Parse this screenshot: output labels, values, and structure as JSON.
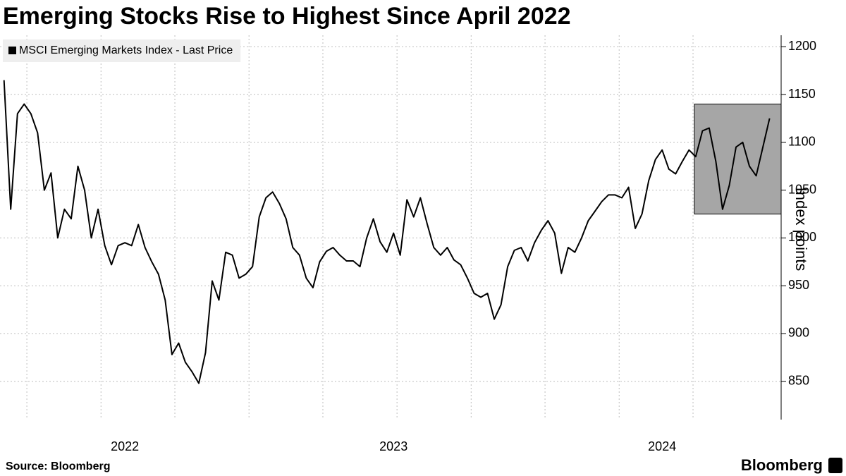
{
  "chart_data": {
    "type": "line",
    "title": "Emerging Stocks Rise to Highest Since April 2022",
    "y_label": "Index points",
    "source": "Source: Bloomberg",
    "brand": "Bloomberg",
    "x": [
      2021.55,
      2021.575,
      2021.6,
      2021.625,
      2021.65,
      2021.675,
      2021.7,
      2021.725,
      2021.75,
      2021.775,
      2021.8,
      2021.825,
      2021.85,
      2021.875,
      2021.9,
      2021.925,
      2021.95,
      2021.975,
      2022,
      2022.025,
      2022.05,
      2022.075,
      2022.1,
      2022.125,
      2022.15,
      2022.175,
      2022.2,
      2022.225,
      2022.25,
      2022.275,
      2022.3,
      2022.325,
      2022.35,
      2022.375,
      2022.4,
      2022.425,
      2022.45,
      2022.475,
      2022.5,
      2022.525,
      2022.55,
      2022.575,
      2022.6,
      2022.625,
      2022.65,
      2022.675,
      2022.7,
      2022.725,
      2022.75,
      2022.775,
      2022.8,
      2022.825,
      2022.85,
      2022.875,
      2022.9,
      2022.925,
      2022.95,
      2022.975,
      2023,
      2023.025,
      2023.05,
      2023.075,
      2023.1,
      2023.125,
      2023.15,
      2023.175,
      2023.2,
      2023.225,
      2023.25,
      2023.275,
      2023.3,
      2023.325,
      2023.35,
      2023.375,
      2023.4,
      2023.425,
      2023.45,
      2023.475,
      2023.5,
      2023.525,
      2023.55,
      2023.575,
      2023.6,
      2023.625,
      2023.65,
      2023.675,
      2023.7,
      2023.725,
      2023.75,
      2023.775,
      2023.8,
      2023.825,
      2023.85,
      2023.875,
      2023.9,
      2023.925,
      2023.95,
      2023.975,
      2024,
      2024.025,
      2024.05,
      2024.075,
      2024.1,
      2024.125,
      2024.15,
      2024.175,
      2024.2,
      2024.225,
      2024.25,
      2024.275,
      2024.3,
      2024.325,
      2024.35,
      2024.375,
      2024.4
    ],
    "series": [
      {
        "name": "MSCI Emerging Markets Index - Last Price",
        "color": "#000000",
        "values": [
          1165,
          1030,
          1130,
          1140,
          1130,
          1110,
          1050,
          1068,
          1000,
          1030,
          1020,
          1075,
          1050,
          1000,
          1030,
          992,
          972,
          992,
          995,
          992,
          1014,
          990,
          975,
          962,
          935,
          878,
          890,
          870,
          860,
          848,
          880,
          955,
          935,
          985,
          982,
          958,
          962,
          970,
          1022,
          1042,
          1048,
          1036,
          1020,
          990,
          982,
          958,
          948,
          975,
          986,
          990,
          982,
          976,
          976,
          970,
          1000,
          1020,
          996,
          985,
          1005,
          982,
          1040,
          1022,
          1042,
          1015,
          990,
          982,
          990,
          977,
          972,
          958,
          942,
          938,
          942,
          915,
          930,
          970,
          987,
          990,
          976,
          995,
          1008,
          1018,
          1005,
          963,
          990,
          985,
          1000,
          1018,
          1028,
          1038,
          1045,
          1045,
          1042,
          1053,
          1010,
          1025,
          1060,
          1082,
          1092,
          1072,
          1067,
          1080,
          1092,
          1085,
          1112,
          1115,
          1080,
          1030,
          1055,
          1095,
          1100,
          1075,
          1065,
          1095,
          1125
        ]
      }
    ],
    "xlim": [
      2021.535,
      2024.443
    ],
    "xticks": [
      2022,
      2023,
      2024
    ],
    "xgrid": [
      2021.635,
      2021.911,
      2022.186,
      2022.462,
      2022.737,
      2023.013,
      2023.289,
      2023.564,
      2023.84,
      2024.115
    ],
    "ylim": [
      810,
      1212
    ],
    "yticks": [
      850,
      900,
      950,
      1000,
      1050,
      1100,
      1150,
      1200
    ],
    "grid": true,
    "highlight": {
      "x": [
        2024.12,
        2024.443
      ],
      "y": [
        1025,
        1140
      ],
      "color": "#a6a6a6"
    }
  }
}
